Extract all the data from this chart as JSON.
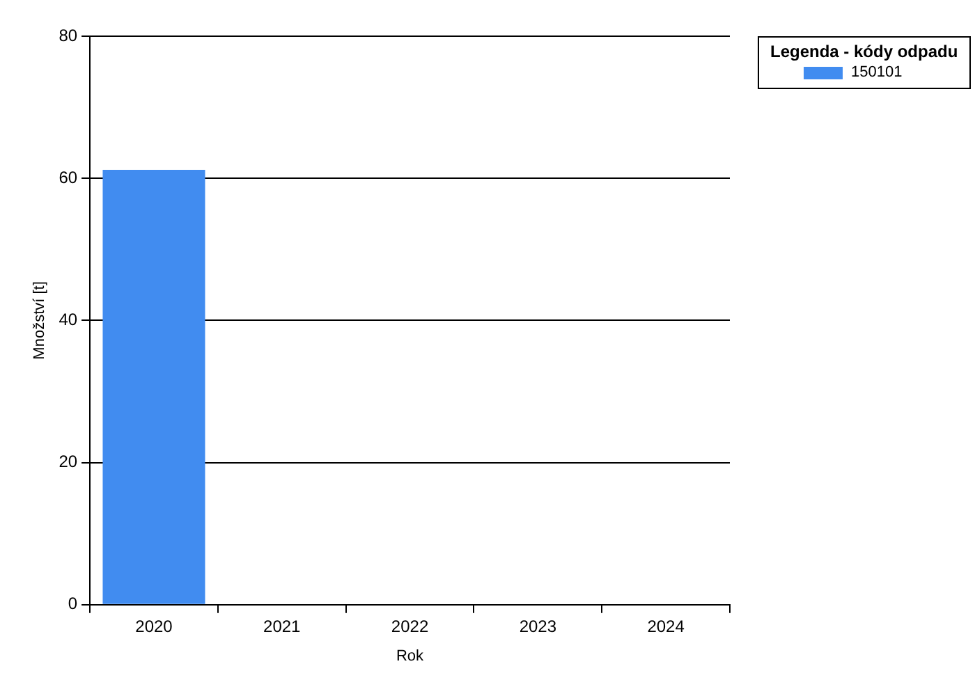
{
  "chart_data": {
    "type": "bar",
    "xlabel": "Rok",
    "ylabel": "Množství [t]",
    "legend_title": "Legenda - kódy odpadu",
    "categories": [
      "2020",
      "2021",
      "2022",
      "2023",
      "2024"
    ],
    "series": [
      {
        "name": "150101",
        "color": "#418cf0",
        "values": [
          61.2,
          0,
          0,
          0,
          0
        ]
      }
    ],
    "ylim": [
      0,
      80
    ],
    "yticks": [
      0,
      20,
      40,
      60,
      80
    ],
    "grid": "y",
    "legend": "top right"
  }
}
